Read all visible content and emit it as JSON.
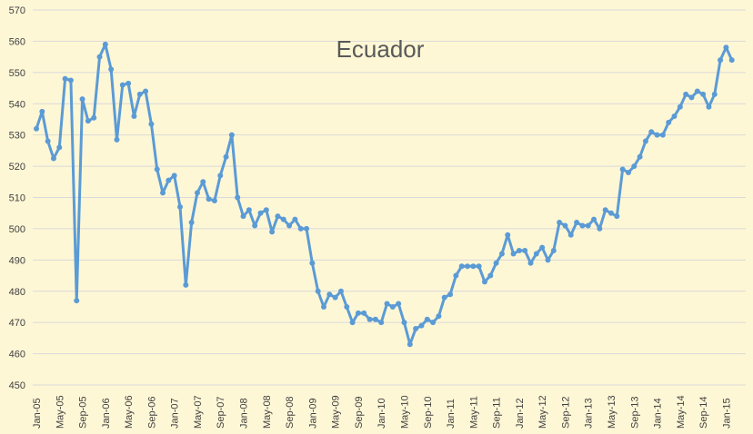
{
  "chart_data": {
    "type": "line",
    "title": "Ecuador",
    "xlabel": "",
    "ylabel": "",
    "ylim": [
      450,
      570
    ],
    "y_tick_step": 10,
    "grid": "horizontal",
    "legend": "none",
    "x_tick_labels": [
      "Jan-05",
      "May-05",
      "Sep-05",
      "Jan-06",
      "May-06",
      "Sep-06",
      "Jan-07",
      "May-07",
      "Sep-07",
      "Jan-08",
      "May-08",
      "Sep-08",
      "Jan-09",
      "May-09",
      "Sep-09",
      "Jan-10",
      "May-10",
      "Sep-10",
      "Jan-11",
      "May-11",
      "Sep-11",
      "Jan-12",
      "May-12",
      "Sep-12",
      "Jan-13",
      "May-13",
      "Sep-13",
      "Jan-14",
      "May-14",
      "Sep-14",
      "Jan-15"
    ],
    "series": [
      {
        "color": "#5B9BD5",
        "values": [
          532,
          537.5,
          528,
          522.5,
          526,
          548,
          547.5,
          477,
          541.5,
          534.5,
          535.5,
          555,
          559,
          551,
          528.5,
          546,
          546.5,
          536,
          543,
          544,
          533.5,
          519,
          511.5,
          515.5,
          517,
          507,
          482,
          502,
          511.5,
          515,
          509.5,
          509,
          517,
          523,
          530,
          510,
          504,
          506,
          501,
          505,
          506,
          499,
          504,
          503,
          501,
          503,
          500,
          500,
          489,
          480,
          475,
          479,
          478,
          480,
          475,
          470,
          473,
          473,
          471,
          471,
          470,
          476,
          475,
          476,
          470,
          463,
          468,
          469,
          471,
          470,
          472,
          478,
          479,
          485,
          488,
          488,
          488,
          488,
          483,
          485,
          489,
          492,
          498,
          492,
          493,
          493,
          489,
          492,
          494,
          490,
          493,
          502,
          501,
          498,
          502,
          501,
          501,
          503,
          500,
          506,
          505,
          504,
          519,
          518,
          520,
          523,
          528,
          531,
          530,
          530,
          534,
          536,
          539,
          543,
          542,
          544,
          543,
          539,
          543,
          554,
          558,
          554
        ]
      }
    ]
  },
  "colors": {
    "background": "#FEF7D6",
    "gridline": "#D9D9D9",
    "axis_text": "#404040",
    "title": "#595959",
    "series": "#5B9BD5"
  }
}
